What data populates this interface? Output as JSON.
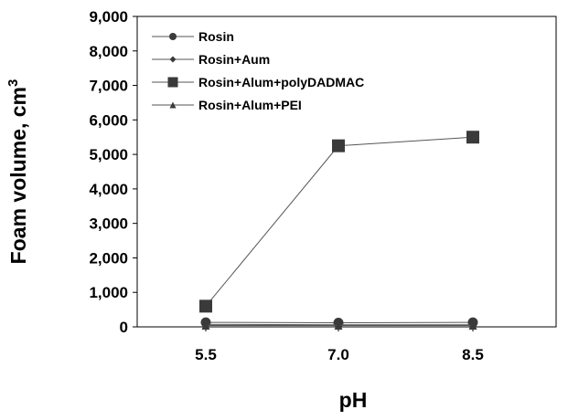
{
  "chart_data": {
    "type": "line",
    "title": "",
    "xlabel": "pH",
    "ylabel": "Foam volume, cm",
    "ylabel_superscript": "3",
    "categories": [
      "5.5",
      "7.0",
      "8.5"
    ],
    "ylim": [
      0,
      9000
    ],
    "yticks": [
      "0",
      "1,000",
      "2,000",
      "3,000",
      "4,000",
      "5,000",
      "6,000",
      "7,000",
      "8,000",
      "9,000"
    ],
    "grid": false,
    "legend_position": "top-left",
    "series": [
      {
        "name": "Rosin",
        "marker": "circle",
        "values": [
          130,
          120,
          130
        ]
      },
      {
        "name": "Rosin+Aum",
        "marker": "diamond",
        "values": [
          70,
          60,
          60
        ]
      },
      {
        "name": "Rosin+Alum+polyDADMAC",
        "marker": "square",
        "values": [
          600,
          5250,
          5500
        ]
      },
      {
        "name": "Rosin+Alum+PEI",
        "marker": "triangle",
        "values": [
          40,
          40,
          40
        ]
      }
    ]
  },
  "colors": {
    "series": "#3a3a3a",
    "line": "#555555",
    "axis": "#000000"
  }
}
